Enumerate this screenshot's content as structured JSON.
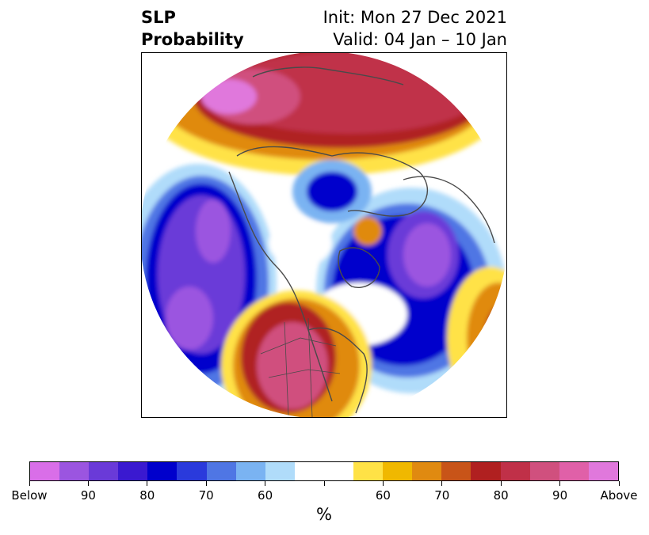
{
  "header": {
    "variable": "SLP",
    "product": "Probability",
    "init": "Init: Mon 27 Dec 2021",
    "valid": "Valid: 04 Jan – 10 Jan"
  },
  "colorbar": {
    "unit": "%",
    "colors": [
      "#d96ee8",
      "#9b55e0",
      "#6a3ad8",
      "#3a19d0",
      "#0000cc",
      "#2a3adc",
      "#4f76e4",
      "#7ab3f2",
      "#b0dcfa",
      "#ffffff",
      "#ffffff",
      "#ffe246",
      "#f0b800",
      "#e08a10",
      "#c85418",
      "#b02020",
      "#c03048",
      "#d0507e",
      "#e060a8",
      "#e078dc"
    ],
    "labels": [
      "Below",
      "90",
      "80",
      "70",
      "60",
      "60",
      "70",
      "80",
      "90",
      "Above"
    ]
  },
  "map": {
    "projection": "north-polar-stereographic",
    "palette": {
      "below_strong": "#9b55e0",
      "below_mid": "#0000cc",
      "below_weak": "#7ab3f2",
      "neutral": "#ffffff",
      "above_weak": "#ffe246",
      "above_mid": "#e08a10",
      "above_strong": "#c03048",
      "above_max": "#e060a8",
      "coastline": "#4a4a4a"
    }
  }
}
